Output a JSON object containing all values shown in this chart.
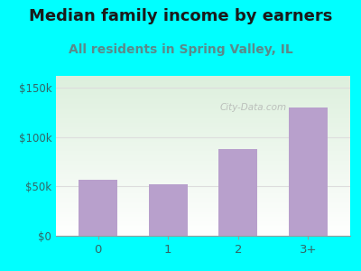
{
  "categories": [
    "0",
    "1",
    "2",
    "3+"
  ],
  "values": [
    57000,
    52000,
    88000,
    130000
  ],
  "bar_color": "#b8a0cc",
  "title": "Median family income by earners",
  "subtitle": "All residents in Spring Valley, IL",
  "title_fontsize": 13,
  "subtitle_fontsize": 10,
  "title_color": "#1a1a1a",
  "subtitle_color": "#5a8a8a",
  "ylabel_ticks": [
    0,
    50000,
    100000,
    150000
  ],
  "ylabel_labels": [
    "$0",
    "$50k",
    "$100k",
    "$150k"
  ],
  "ylim": [
    0,
    162000
  ],
  "outer_bg": "#00ffff",
  "plot_bg_bottom": "#ffffff",
  "plot_bg_top": "#ddf0dd",
  "watermark": "City-Data.com",
  "tick_color": "#336666",
  "grid_color": "#dddddd",
  "bar_width": 0.55
}
